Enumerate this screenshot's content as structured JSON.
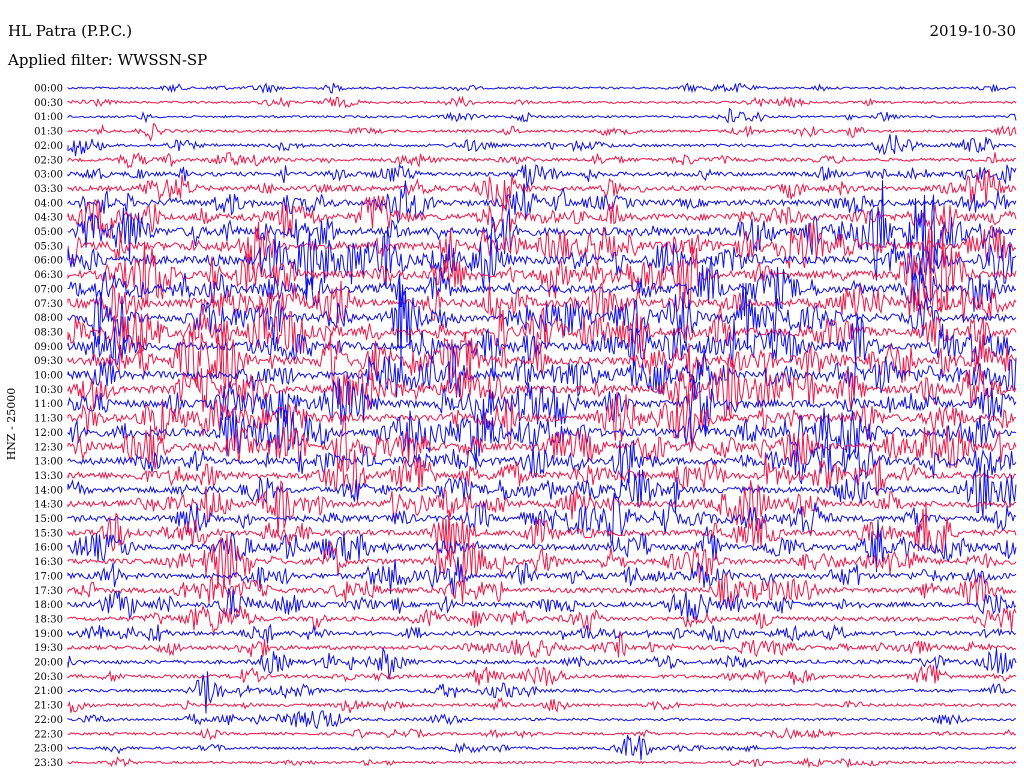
{
  "chart_data": {
    "type": "line",
    "title": "HL Patra (P.P.C.)",
    "date": "2019-10-30",
    "filter_label": "Applied filter: WWSSN-SP",
    "ylabel": "HNZ - 25000",
    "colors": {
      "blue": "#1010e8",
      "red": "#f01848"
    },
    "color_order": [
      "blue",
      "red"
    ],
    "x_minutes_per_line": 30,
    "time_labels": [
      "00:00",
      "00:30",
      "01:00",
      "01:30",
      "02:00",
      "02:30",
      "03:00",
      "03:30",
      "04:00",
      "04:30",
      "05:00",
      "05:30",
      "06:00",
      "06:30",
      "07:00",
      "07:30",
      "08:00",
      "08:30",
      "09:00",
      "09:30",
      "10:00",
      "10:30",
      "11:00",
      "11:30",
      "12:00",
      "12:30",
      "13:00",
      "13:30",
      "14:00",
      "14:30",
      "15:00",
      "15:30",
      "16:00",
      "16:30",
      "17:00",
      "17:30",
      "18:00",
      "18:30",
      "19:00",
      "19:30",
      "20:00",
      "20:30",
      "21:00",
      "21:30",
      "22:00",
      "22:30",
      "23:00",
      "23:30"
    ],
    "relative_amplitude": [
      0.15,
      0.15,
      0.15,
      0.2,
      0.25,
      0.3,
      0.45,
      0.55,
      0.7,
      0.85,
      1.0,
      1.0,
      1.0,
      1.0,
      1.0,
      1.0,
      1.0,
      1.0,
      1.0,
      1.0,
      1.0,
      1.0,
      0.95,
      0.95,
      0.95,
      0.9,
      0.85,
      0.8,
      0.75,
      0.75,
      0.7,
      0.7,
      0.7,
      0.65,
      0.65,
      0.6,
      0.55,
      0.5,
      0.45,
      0.45,
      0.4,
      0.35,
      0.3,
      0.25,
      0.22,
      0.2,
      0.18,
      0.15
    ]
  }
}
